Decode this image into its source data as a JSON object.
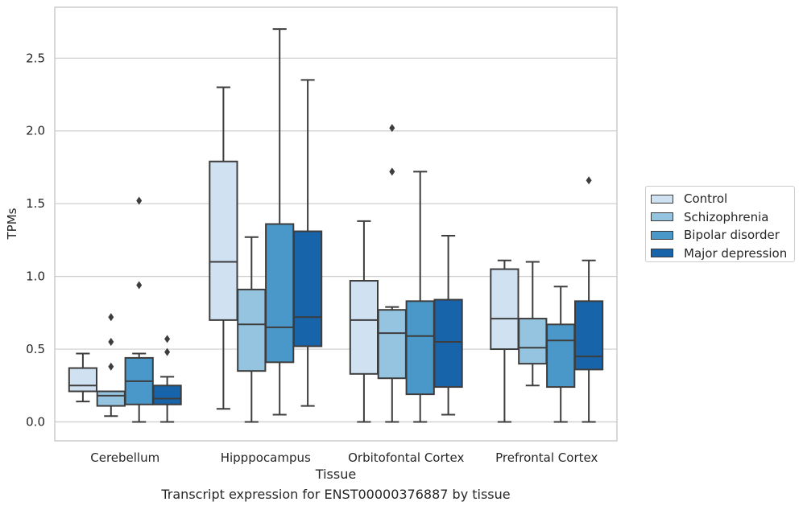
{
  "chart_data": {
    "type": "boxplot",
    "xlabel": "Tissue",
    "ylabel": "TPMs",
    "ylim": [
      -0.13,
      2.85
    ],
    "yticks": [
      0.0,
      0.5,
      1.0,
      1.5,
      2.0,
      2.5
    ],
    "ytick_labels": [
      "0.0",
      "0.5",
      "1.0",
      "1.5",
      "2.0",
      "2.5"
    ],
    "grid": "horizontal",
    "legend_position": "right",
    "categories": [
      "Cerebellum",
      "Hipppocampus",
      "Orbitofontal Cortex",
      "Prefrontal Cortex"
    ],
    "series": [
      {
        "name": "Control",
        "color": "#d0e1f2",
        "boxes": [
          {
            "whisker_low": 0.14,
            "q1": 0.21,
            "median": 0.25,
            "q3": 0.37,
            "whisker_high": 0.47,
            "outliers": []
          },
          {
            "whisker_low": 0.09,
            "q1": 0.7,
            "median": 1.1,
            "q3": 1.79,
            "whisker_high": 2.3,
            "outliers": []
          },
          {
            "whisker_low": 0.0,
            "q1": 0.33,
            "median": 0.7,
            "q3": 0.97,
            "whisker_high": 1.38,
            "outliers": []
          },
          {
            "whisker_low": 0.0,
            "q1": 0.5,
            "median": 0.71,
            "q3": 1.05,
            "whisker_high": 1.11,
            "outliers": []
          }
        ]
      },
      {
        "name": "Schizophrenia",
        "color": "#94c4df",
        "boxes": [
          {
            "whisker_low": 0.04,
            "q1": 0.11,
            "median": 0.18,
            "q3": 0.21,
            "whisker_high": 0.21,
            "outliers": [
              0.38,
              0.55,
              0.72
            ]
          },
          {
            "whisker_low": 0.0,
            "q1": 0.35,
            "median": 0.67,
            "q3": 0.91,
            "whisker_high": 1.27,
            "outliers": []
          },
          {
            "whisker_low": 0.0,
            "q1": 0.3,
            "median": 0.61,
            "q3": 0.77,
            "whisker_high": 0.79,
            "outliers": [
              1.72,
              2.02
            ]
          },
          {
            "whisker_low": 0.25,
            "q1": 0.4,
            "median": 0.51,
            "q3": 0.71,
            "whisker_high": 1.1,
            "outliers": []
          }
        ]
      },
      {
        "name": "Bipolar disorder",
        "color": "#4a98c9",
        "boxes": [
          {
            "whisker_low": 0.0,
            "q1": 0.12,
            "median": 0.28,
            "q3": 0.44,
            "whisker_high": 0.47,
            "outliers": [
              0.94,
              1.52
            ]
          },
          {
            "whisker_low": 0.05,
            "q1": 0.41,
            "median": 0.65,
            "q3": 1.36,
            "whisker_high": 2.7,
            "outliers": []
          },
          {
            "whisker_low": 0.0,
            "q1": 0.19,
            "median": 0.59,
            "q3": 0.83,
            "whisker_high": 1.72,
            "outliers": []
          },
          {
            "whisker_low": 0.0,
            "q1": 0.24,
            "median": 0.56,
            "q3": 0.67,
            "whisker_high": 0.93,
            "outliers": []
          }
        ]
      },
      {
        "name": "Major depression",
        "color": "#1764ab",
        "boxes": [
          {
            "whisker_low": 0.0,
            "q1": 0.12,
            "median": 0.16,
            "q3": 0.25,
            "whisker_high": 0.31,
            "outliers": [
              0.48,
              0.57
            ]
          },
          {
            "whisker_low": 0.11,
            "q1": 0.52,
            "median": 0.72,
            "q3": 1.31,
            "whisker_high": 2.35,
            "outliers": []
          },
          {
            "whisker_low": 0.05,
            "q1": 0.24,
            "median": 0.55,
            "q3": 0.84,
            "whisker_high": 1.28,
            "outliers": []
          },
          {
            "whisker_low": 0.0,
            "q1": 0.36,
            "median": 0.45,
            "q3": 0.83,
            "whisker_high": 1.11,
            "outliers": [
              1.66
            ]
          }
        ]
      }
    ],
    "caption": "Transcript expression for ENST00000376887 by tissue"
  }
}
